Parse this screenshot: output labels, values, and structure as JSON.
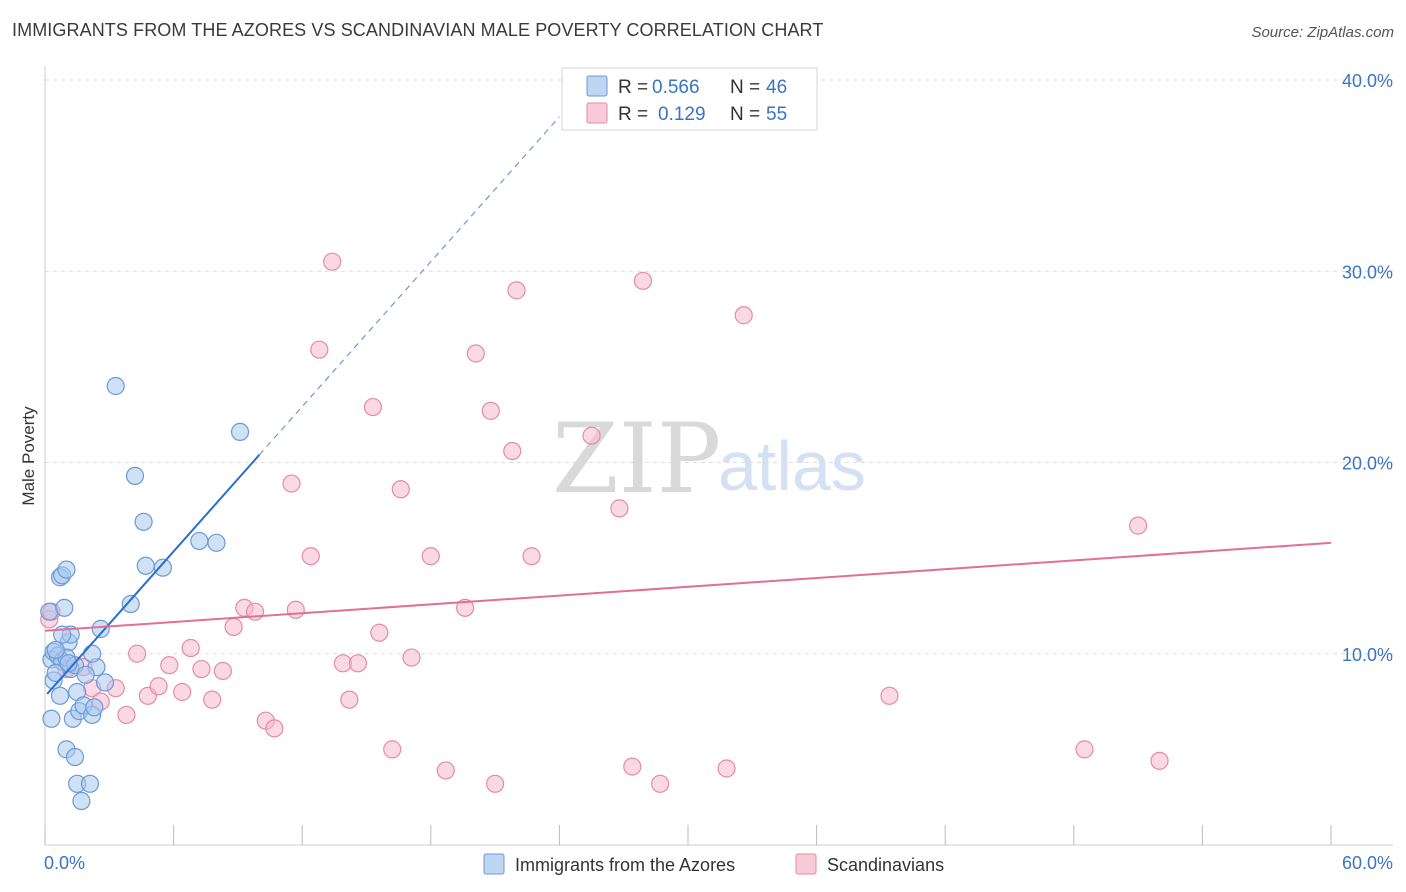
{
  "header": {
    "title": "IMMIGRANTS FROM THE AZORES VS SCANDINAVIAN MALE POVERTY CORRELATION CHART",
    "source": "Source: ZipAtlas.com"
  },
  "watermark": {
    "zip": "ZIP",
    "atlas": "atlas"
  },
  "colors": {
    "blue_fill": "#aac8ef",
    "blue_stroke": "#6a9ad8",
    "blue_line": "#2a6fcf",
    "pink_fill": "#f6b9cc",
    "pink_stroke": "#e58aa9",
    "pink_line": "#e0709a",
    "tick_label": "#3a74c4",
    "grid": "#dcdcdc"
  },
  "legend": {
    "rows": [
      {
        "r_label": "R = ",
        "r_value": "0.566",
        "n_label": "N = ",
        "n_value": "46"
      },
      {
        "r_label": "R = ",
        "r_value": "0.129",
        "n_label": "N = ",
        "n_value": "55"
      }
    ]
  },
  "chart_data": {
    "type": "scatter",
    "title": "IMMIGRANTS FROM THE AZORES VS SCANDINAVIAN MALE POVERTY CORRELATION CHART",
    "xlabel": "",
    "ylabel": "Male Poverty",
    "xlim": [
      0,
      60
    ],
    "ylim": [
      0,
      40
    ],
    "x_tick_labels": [
      "0.0%",
      "60.0%"
    ],
    "y_ticks": [
      10,
      20,
      30,
      40
    ],
    "y_tick_labels": [
      "10.0%",
      "20.0%",
      "30.0%",
      "40.0%"
    ],
    "x_minor_ticks": [
      0,
      6,
      12,
      18,
      24,
      30,
      36,
      42,
      48,
      54,
      60
    ],
    "grid": true,
    "legend_position": "top-center",
    "series": [
      {
        "name": "Immigrants from the Azores",
        "color": "blue",
        "r": 0.566,
        "n": 46,
        "trend": {
          "x0": 0.1,
          "y0": 7.9,
          "x1": 10.0,
          "y1": 20.4,
          "dashed_to_x": 24.0
        },
        "points": [
          [
            0.2,
            12.2
          ],
          [
            0.3,
            9.7
          ],
          [
            0.4,
            10.1
          ],
          [
            0.4,
            8.6
          ],
          [
            0.3,
            6.6
          ],
          [
            0.6,
            9.9
          ],
          [
            0.7,
            14.0
          ],
          [
            0.8,
            14.1
          ],
          [
            0.9,
            12.4
          ],
          [
            1.0,
            14.4
          ],
          [
            0.8,
            9.6
          ],
          [
            1.1,
            10.6
          ],
          [
            1.2,
            11.0
          ],
          [
            1.2,
            9.2
          ],
          [
            1.0,
            9.8
          ],
          [
            0.7,
            7.8
          ],
          [
            1.4,
            9.4
          ],
          [
            1.5,
            8.0
          ],
          [
            1.3,
            6.6
          ],
          [
            1.6,
            7.0
          ],
          [
            1.8,
            7.3
          ],
          [
            2.2,
            6.8
          ],
          [
            2.3,
            7.2
          ],
          [
            2.4,
            9.3
          ],
          [
            2.6,
            11.3
          ],
          [
            2.8,
            8.5
          ],
          [
            1.0,
            5.0
          ],
          [
            1.4,
            4.6
          ],
          [
            1.5,
            3.2
          ],
          [
            2.1,
            3.2
          ],
          [
            1.7,
            2.3
          ],
          [
            0.8,
            11.0
          ],
          [
            0.5,
            10.2
          ],
          [
            3.3,
            24.0
          ],
          [
            4.0,
            12.6
          ],
          [
            4.2,
            19.3
          ],
          [
            4.6,
            16.9
          ],
          [
            4.7,
            14.6
          ],
          [
            5.5,
            14.5
          ],
          [
            7.2,
            15.9
          ],
          [
            8.0,
            15.8
          ],
          [
            9.1,
            21.6
          ],
          [
            1.9,
            8.9
          ],
          [
            2.2,
            10.0
          ],
          [
            0.5,
            9.0
          ],
          [
            1.1,
            9.5
          ]
        ]
      },
      {
        "name": "Scandinavians",
        "color": "pink",
        "r": 0.129,
        "n": 55,
        "trend": {
          "x0": 0.0,
          "y0": 11.2,
          "x1": 60.0,
          "y1": 15.8
        },
        "points": [
          [
            0.2,
            11.8
          ],
          [
            0.3,
            12.2
          ],
          [
            1.0,
            9.2
          ],
          [
            1.8,
            9.3
          ],
          [
            2.2,
            8.2
          ],
          [
            2.6,
            7.5
          ],
          [
            3.3,
            8.2
          ],
          [
            3.8,
            6.8
          ],
          [
            4.3,
            10.0
          ],
          [
            4.8,
            7.8
          ],
          [
            5.3,
            8.3
          ],
          [
            5.8,
            9.4
          ],
          [
            6.4,
            8.0
          ],
          [
            6.8,
            10.3
          ],
          [
            7.3,
            9.2
          ],
          [
            7.8,
            7.6
          ],
          [
            8.3,
            9.1
          ],
          [
            8.8,
            11.4
          ],
          [
            9.3,
            12.4
          ],
          [
            9.8,
            12.2
          ],
          [
            10.3,
            6.5
          ],
          [
            10.7,
            6.1
          ],
          [
            11.5,
            18.9
          ],
          [
            11.7,
            12.3
          ],
          [
            12.4,
            15.1
          ],
          [
            12.8,
            25.9
          ],
          [
            13.4,
            30.5
          ],
          [
            13.9,
            9.5
          ],
          [
            14.2,
            7.6
          ],
          [
            14.6,
            9.5
          ],
          [
            15.3,
            22.9
          ],
          [
            15.6,
            11.1
          ],
          [
            16.2,
            5.0
          ],
          [
            16.6,
            18.6
          ],
          [
            17.1,
            9.8
          ],
          [
            18.0,
            15.1
          ],
          [
            18.7,
            3.9
          ],
          [
            19.6,
            12.4
          ],
          [
            20.1,
            25.7
          ],
          [
            20.8,
            22.7
          ],
          [
            21.0,
            3.2
          ],
          [
            21.8,
            20.6
          ],
          [
            22.0,
            29.0
          ],
          [
            22.7,
            15.1
          ],
          [
            25.5,
            21.4
          ],
          [
            26.8,
            17.6
          ],
          [
            27.4,
            4.1
          ],
          [
            27.9,
            29.5
          ],
          [
            28.7,
            3.2
          ],
          [
            31.8,
            4.0
          ],
          [
            32.6,
            27.7
          ],
          [
            39.4,
            7.8
          ],
          [
            48.5,
            5.0
          ],
          [
            51.0,
            16.7
          ],
          [
            52.0,
            4.4
          ]
        ]
      }
    ]
  }
}
